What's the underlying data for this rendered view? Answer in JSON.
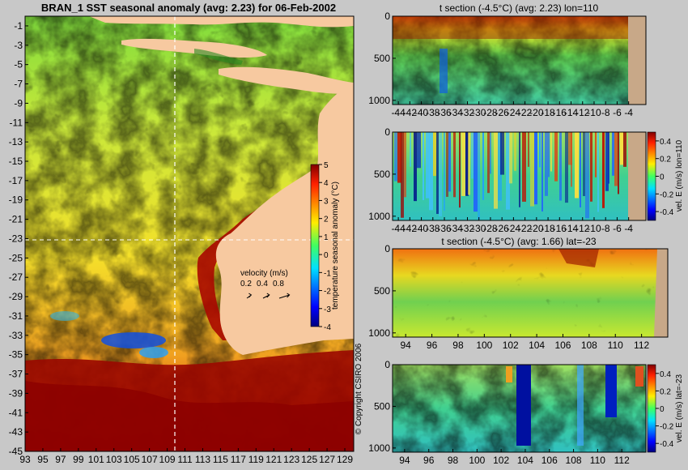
{
  "chart_data": [
    {
      "type": "heatmap",
      "title": "BRAN_1 SST seasonal anomaly (avg: 2.23) for 06-Feb-2002",
      "x_ticks": [
        "93",
        "95",
        "97",
        "99",
        "101",
        "103",
        "105",
        "107",
        "109",
        "111",
        "113",
        "115",
        "117",
        "119",
        "121",
        "123",
        "125",
        "127",
        "129"
      ],
      "y_ticks": [
        "-1",
        "-3",
        "-5",
        "-7",
        "-9",
        "-11",
        "-13",
        "-15",
        "-17",
        "-19",
        "-21",
        "-23",
        "-25",
        "-27",
        "-29",
        "-31",
        "-33",
        "-35",
        "-37",
        "-39",
        "-41",
        "-43",
        "-45"
      ],
      "xlim": [
        93,
        130
      ],
      "ylim": [
        -45,
        0
      ],
      "colorbar": {
        "label": "temperature seasonal anomaly (°C)",
        "ticks": [
          "5",
          "4",
          "3",
          "2",
          "1",
          "0",
          "-1",
          "-2",
          "-3",
          "-4"
        ],
        "range": [
          -4,
          5
        ]
      },
      "section_lines": {
        "lon": 110,
        "lat": -23
      },
      "legend": {
        "title": "velocity (m/s)",
        "values": [
          "0.2",
          "0.4",
          "0.8"
        ]
      },
      "copyright": "© Copyright CSIRO 2006"
    },
    {
      "type": "heatmap",
      "title": "t section (-4.5°C) (avg: 2.23) lon=110",
      "x_ticks": [
        "-44",
        "-42",
        "-40",
        "-38",
        "-36",
        "-34",
        "-32",
        "-30",
        "-28",
        "-26",
        "-24",
        "-22",
        "-20",
        "-18",
        "-16",
        "-14",
        "-12",
        "-10",
        "-8",
        "-6",
        "-4"
      ],
      "y_ticks": [
        "0",
        "500",
        "1000"
      ],
      "xlim": [
        -45,
        -1
      ],
      "ylim": [
        1050,
        0
      ]
    },
    {
      "type": "heatmap",
      "title": "",
      "x_ticks": [
        "-44",
        "-42",
        "-40",
        "-38",
        "-36",
        "-34",
        "-32",
        "-30",
        "-28",
        "-26",
        "-24",
        "-22",
        "-20",
        "-18",
        "-16",
        "-14",
        "-12",
        "-10",
        "-8",
        "-6",
        "-4"
      ],
      "y_ticks": [
        "0",
        "500",
        "1000"
      ],
      "xlim": [
        -45,
        -1
      ],
      "ylim": [
        1050,
        0
      ],
      "colorbar": {
        "label": "vel. E (m/s) lon=110",
        "ticks": [
          "0.4",
          "0.2",
          "0",
          "-0.2",
          "-0.4"
        ],
        "range": [
          -0.5,
          0.5
        ]
      }
    },
    {
      "type": "heatmap",
      "title": "t section (-4.5°C) (avg: 1.66) lat=-23",
      "x_ticks": [
        "94",
        "96",
        "98",
        "100",
        "102",
        "104",
        "106",
        "108",
        "110",
        "112"
      ],
      "y_ticks": [
        "0",
        "500",
        "1000"
      ],
      "xlim": [
        93,
        114
      ],
      "ylim": [
        1050,
        0
      ]
    },
    {
      "type": "heatmap",
      "title": "",
      "x_ticks": [
        "94",
        "96",
        "98",
        "100",
        "102",
        "104",
        "106",
        "108",
        "110",
        "112"
      ],
      "y_ticks": [
        "0",
        "500",
        "1000"
      ],
      "xlim": [
        93,
        114
      ],
      "ylim": [
        1050,
        0
      ],
      "colorbar": {
        "label": "vel. E (m/s) lat=-23",
        "ticks": [
          "0.4",
          "0.2",
          "0",
          "-0.2",
          "-0.4"
        ],
        "range": [
          -0.5,
          0.5
        ]
      }
    }
  ]
}
